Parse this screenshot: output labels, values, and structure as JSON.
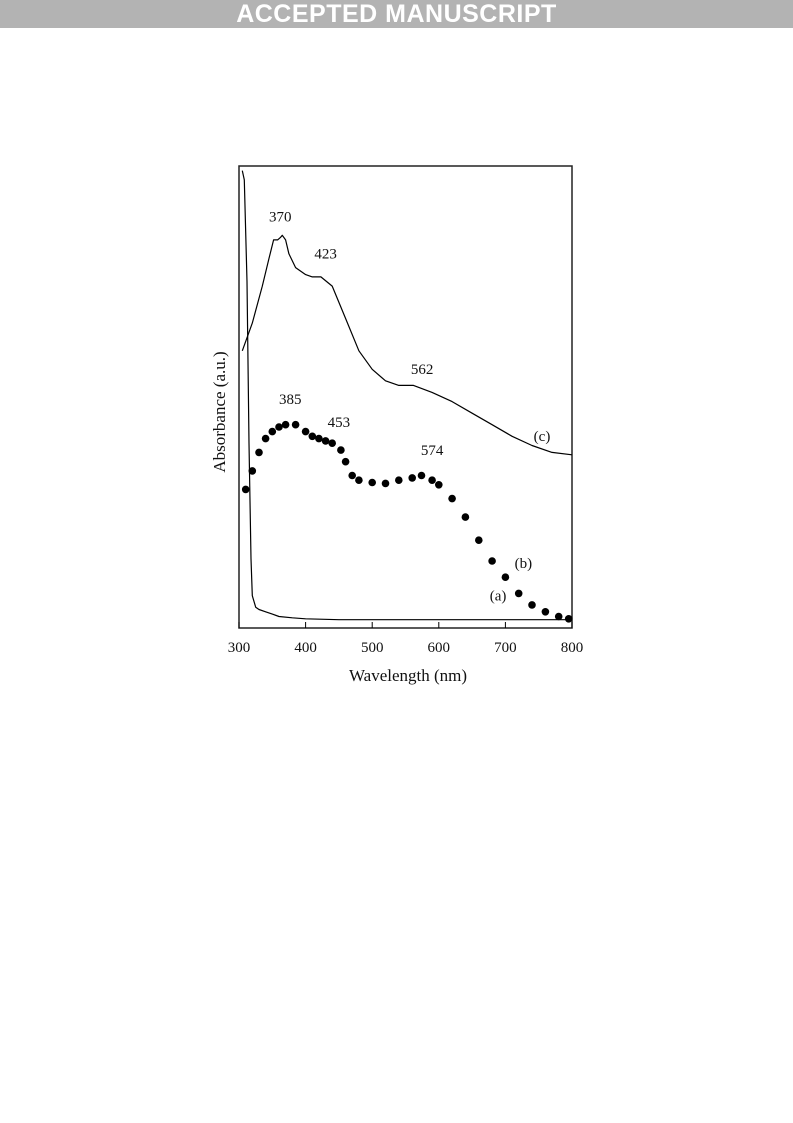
{
  "header": {
    "banner_text": "ACCEPTED MANUSCRIPT"
  },
  "chart_data": {
    "type": "line",
    "xlabel": "Wavelength (nm)",
    "ylabel": "Absorbance (a.u.)",
    "xlim": [
      300,
      800
    ],
    "ylim": [
      0,
      1
    ],
    "x_ticks": [
      300,
      400,
      500,
      600,
      700,
      800
    ],
    "y_ticks": [],
    "grid": false,
    "series": [
      {
        "name": "(a)",
        "style": "line",
        "x": [
          305,
          308,
          312,
          315,
          318,
          320,
          325,
          330,
          340,
          350,
          360,
          380,
          400,
          450,
          500,
          600,
          700,
          800
        ],
        "y": [
          0.99,
          0.97,
          0.75,
          0.4,
          0.15,
          0.07,
          0.045,
          0.04,
          0.035,
          0.03,
          0.025,
          0.022,
          0.02,
          0.018,
          0.018,
          0.018,
          0.018,
          0.018
        ]
      },
      {
        "name": "(b)",
        "style": "dots",
        "x": [
          310,
          320,
          330,
          340,
          350,
          360,
          370,
          385,
          400,
          410,
          420,
          430,
          440,
          453,
          460,
          470,
          480,
          500,
          520,
          540,
          560,
          574,
          590,
          600,
          620,
          640,
          660,
          680,
          700,
          720,
          740,
          760,
          780,
          795
        ],
        "y": [
          0.3,
          0.34,
          0.38,
          0.41,
          0.425,
          0.435,
          0.44,
          0.44,
          0.425,
          0.415,
          0.41,
          0.405,
          0.4,
          0.385,
          0.36,
          0.33,
          0.32,
          0.315,
          0.313,
          0.32,
          0.325,
          0.33,
          0.32,
          0.31,
          0.28,
          0.24,
          0.19,
          0.145,
          0.11,
          0.075,
          0.05,
          0.035,
          0.025,
          0.02
        ]
      },
      {
        "name": "(c)",
        "style": "line",
        "x": [
          305,
          320,
          335,
          345,
          352,
          358,
          362,
          365,
          370,
          375,
          385,
          400,
          410,
          423,
          440,
          460,
          480,
          500,
          520,
          540,
          562,
          590,
          620,
          650,
          680,
          710,
          740,
          770,
          800
        ],
        "y": [
          0.6,
          0.66,
          0.74,
          0.8,
          0.84,
          0.84,
          0.845,
          0.85,
          0.84,
          0.81,
          0.78,
          0.765,
          0.76,
          0.76,
          0.74,
          0.67,
          0.6,
          0.56,
          0.535,
          0.525,
          0.525,
          0.51,
          0.49,
          0.465,
          0.44,
          0.415,
          0.395,
          0.38,
          0.375
        ]
      }
    ],
    "annotations": [
      {
        "text": "370",
        "x": 362,
        "y": 0.88
      },
      {
        "text": "423",
        "x": 430,
        "y": 0.8
      },
      {
        "text": "562",
        "x": 575,
        "y": 0.55
      },
      {
        "text": "385",
        "x": 377,
        "y": 0.485
      },
      {
        "text": "453",
        "x": 450,
        "y": 0.435
      },
      {
        "text": "574",
        "x": 590,
        "y": 0.375
      },
      {
        "text": "(c)",
        "x": 755,
        "y": 0.405
      },
      {
        "text": "(b)",
        "x": 727,
        "y": 0.13
      },
      {
        "text": "(a)",
        "x": 689,
        "y": 0.06
      }
    ],
    "colors": {
      "axes": "#000000",
      "lines": "#000000",
      "background": "#ffffff"
    }
  }
}
